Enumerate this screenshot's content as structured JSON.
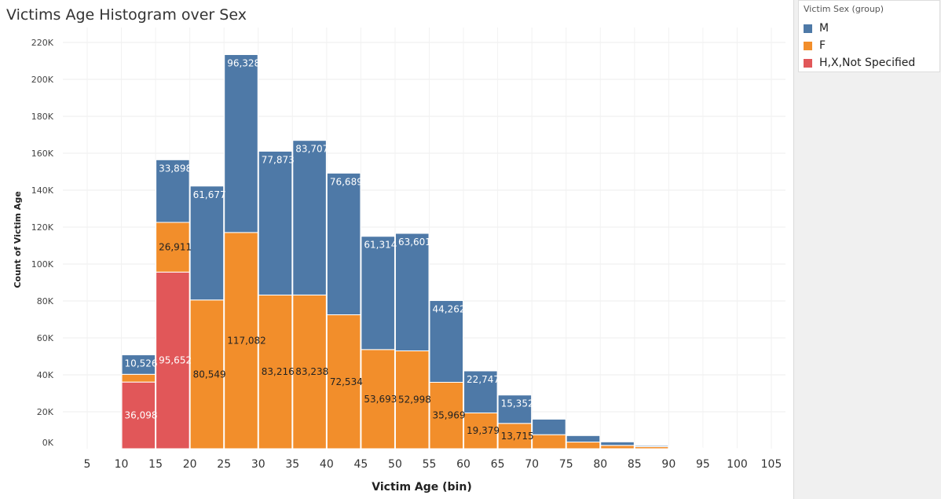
{
  "chart_data": {
    "type": "bar",
    "stacked": true,
    "title": "Victims Age Histogram over Sex",
    "xlabel": "Victim Age (bin)",
    "ylabel": "Count of Victim Age",
    "ylim": [
      0,
      220000
    ],
    "y_ticks": [
      0,
      20000,
      40000,
      60000,
      80000,
      100000,
      120000,
      140000,
      160000,
      180000,
      200000,
      220000
    ],
    "y_tick_labels": [
      "0K",
      "20K",
      "40K",
      "60K",
      "80K",
      "100K",
      "120K",
      "140K",
      "160K",
      "180K",
      "200K",
      "220K"
    ],
    "x_ticks": [
      5,
      10,
      15,
      20,
      25,
      30,
      35,
      40,
      45,
      50,
      55,
      60,
      65,
      70,
      75,
      80,
      85,
      90,
      95,
      100,
      105
    ],
    "grid": true,
    "legend": {
      "title": "Victim Sex (group)",
      "position": "top-right",
      "entries": [
        "M",
        "F",
        "H,X,Not Specified"
      ]
    },
    "bins": [
      10,
      15,
      20,
      25,
      30,
      35,
      40,
      45,
      50,
      55,
      60,
      65,
      70,
      75,
      80,
      85,
      90,
      95,
      100
    ],
    "series": [
      {
        "name": "H,X,Not Specified",
        "color": "#e15759",
        "values": [
          36098,
          95652,
          0,
          0,
          0,
          0,
          0,
          0,
          0,
          0,
          0,
          0,
          0,
          0,
          0,
          0,
          0,
          0,
          0
        ],
        "labels": [
          "36,098",
          "95,652",
          "",
          "",
          "",
          "",
          "",
          "",
          "",
          "",
          "",
          "",
          "",
          "",
          "",
          "",
          "",
          "",
          ""
        ]
      },
      {
        "name": "F",
        "color": "#f28e2b",
        "values": [
          4200,
          26911,
          80549,
          117082,
          83216,
          83238,
          72534,
          53693,
          52998,
          35969,
          19379,
          13715,
          7600,
          3600,
          1800,
          1100,
          300,
          80,
          0
        ],
        "labels": [
          "",
          "26,911",
          "80,549",
          "117,082",
          "83,216",
          "83,238",
          "72,534",
          "53,693",
          "52,998",
          "35,969",
          "19,379",
          "13,715",
          "",
          "",
          "",
          "",
          "",
          "",
          ""
        ]
      },
      {
        "name": "M",
        "color": "#4e79a7",
        "values": [
          10526,
          33898,
          61677,
          96328,
          77873,
          83707,
          76689,
          61314,
          63601,
          44262,
          22747,
          15352,
          8400,
          3500,
          1900,
          600,
          200,
          150,
          0
        ],
        "labels": [
          "10,526",
          "33,898",
          "61,677",
          "96,328",
          "77,873",
          "83,707",
          "76,689",
          "61,314",
          "63,601",
          "44,262",
          "22,747",
          "15,352",
          "",
          "",
          "",
          "",
          "",
          "",
          ""
        ]
      }
    ]
  }
}
